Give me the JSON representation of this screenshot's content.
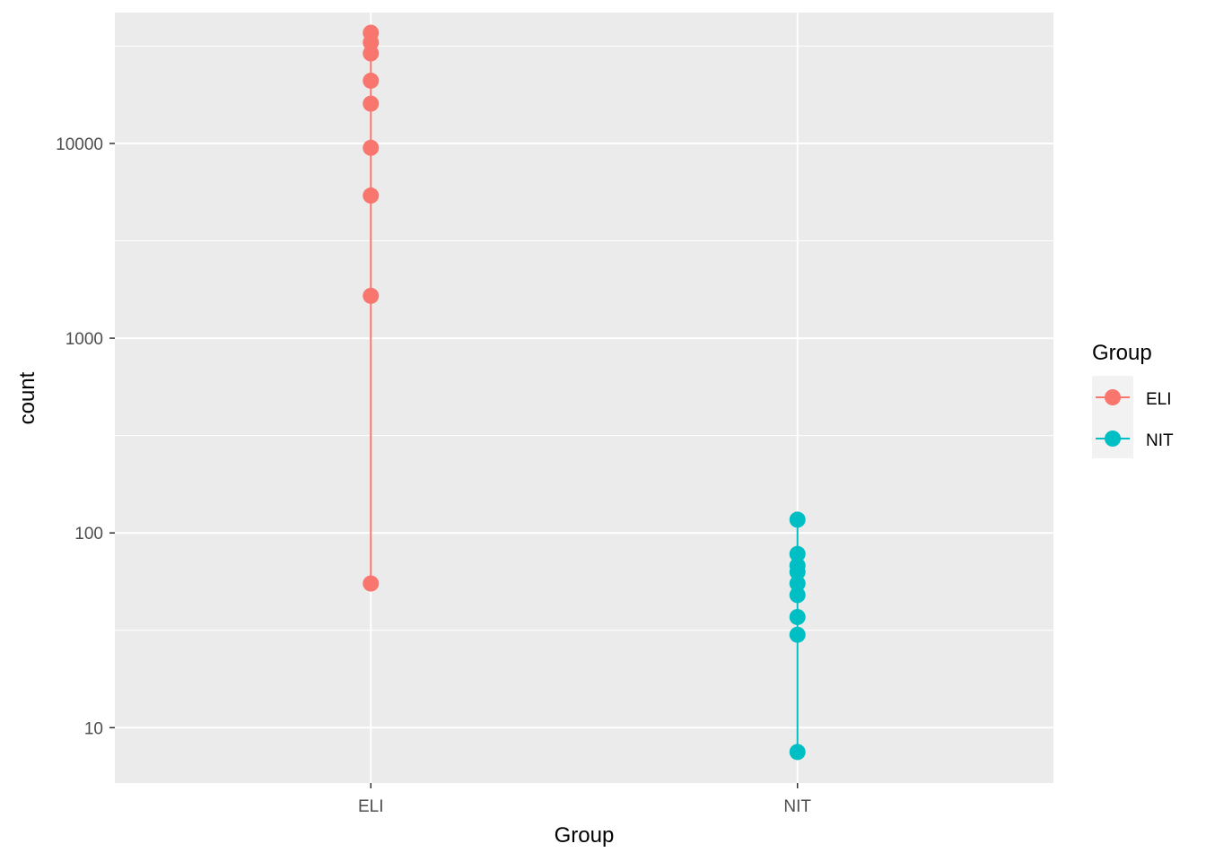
{
  "chart_data": {
    "type": "scatter",
    "xlabel": "Group",
    "ylabel": "count",
    "categories": [
      "ELI",
      "NIT"
    ],
    "y_scale": "log10",
    "ylim": [
      5.2,
      47000
    ],
    "y_ticks": [
      10,
      100,
      1000,
      10000
    ],
    "y_tick_labels": [
      "10",
      "100",
      "1000",
      "10000"
    ],
    "grid": true,
    "legend": {
      "title": "Group",
      "position": "right"
    },
    "series": [
      {
        "name": "ELI",
        "category": "ELI",
        "color": "#F8766D",
        "values": [
          55,
          1650,
          5400,
          9500,
          16000,
          21000,
          29000,
          33000,
          37000
        ]
      },
      {
        "name": "NIT",
        "category": "NIT",
        "color": "#00BFC4",
        "values": [
          7.5,
          30,
          37,
          48,
          55,
          63,
          68,
          78,
          117
        ]
      }
    ]
  }
}
